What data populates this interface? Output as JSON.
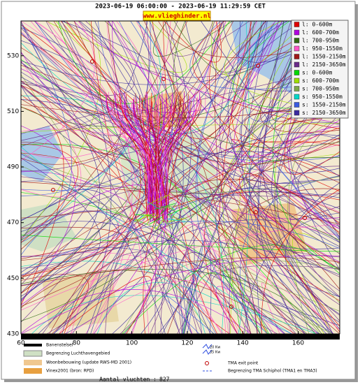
{
  "header": {
    "title": "2023-06-19 06:00:00 - 2023-06-19 11:29:59 CET",
    "logo": "www.vlieghinder.nl"
  },
  "map": {
    "xlim": [
      60,
      175
    ],
    "ylim": [
      430,
      542.5
    ],
    "xticks": [
      60,
      80,
      100,
      120,
      140,
      160
    ],
    "yticks": [
      430,
      450,
      470,
      490,
      510,
      530
    ],
    "series": [
      {
        "name": "l: 0-600m",
        "color": "#e00000"
      },
      {
        "name": "l: 600-700m",
        "color": "#b000e0"
      },
      {
        "name": "l: 700-950m",
        "color": "#2e6a10"
      },
      {
        "name": "l: 950-1550m",
        "color": "#ff55c8"
      },
      {
        "name": "l: 1550-2150m",
        "color": "#a01818"
      },
      {
        "name": "l: 2150-3650m",
        "color": "#6a2a8a"
      },
      {
        "name": "s: 0-600m",
        "color": "#00d800"
      },
      {
        "name": "s: 600-700m",
        "color": "#9ee000"
      },
      {
        "name": "s: 700-950m",
        "color": "#7ea84a"
      },
      {
        "name": "s: 950-1550m",
        "color": "#00d8c8"
      },
      {
        "name": "s: 1550-2150m",
        "color": "#3a5ae0"
      },
      {
        "name": "s: 2150-3650m",
        "color": "#3a2aa0"
      }
    ]
  },
  "legend_bottom": {
    "left": [
      "Banenstelsel",
      "Begrenzing Luchthavengebied",
      "Woonbebouwing (update RWS-MD 2001)",
      "Vinex2001 (bron: RPD)"
    ],
    "right": [
      "20 Kw",
      "35 Kw",
      "TMA exit point",
      "Begrenzing TMA Schiphol  (TMA1 en TMA3)"
    ]
  },
  "footer": {
    "flights_label": "Aantal vluchten :",
    "flights_count": 827
  }
}
